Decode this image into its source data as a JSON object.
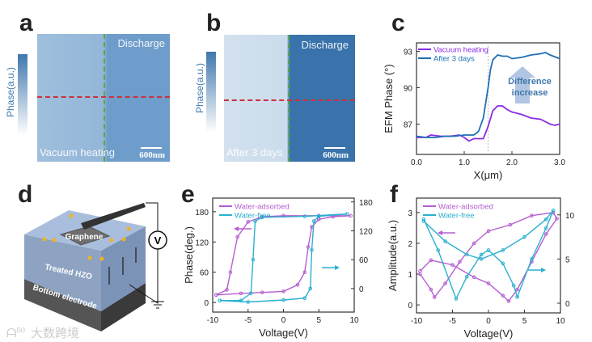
{
  "panels": {
    "a": {
      "label": "a",
      "colorbar_label": "Phase(a.u.)",
      "top_text": "Discharge",
      "bottom_text": "Vacuum heating",
      "scale": "600nm"
    },
    "b": {
      "label": "b",
      "colorbar_label": "Phase(a.u.)",
      "top_text": "Discharge",
      "bottom_text": "After 3 days",
      "scale": "600nm"
    },
    "c": {
      "label": "c"
    },
    "d": {
      "label": "d",
      "graphene": "Graphene",
      "hzo": "Treated HZO",
      "electrode": "Bottom electrode",
      "meter": "V"
    },
    "e": {
      "label": "e"
    },
    "f": {
      "label": "f"
    }
  },
  "watermark": "大数跨境",
  "colors": {
    "purple": "#8a2be2",
    "blue": "#1f6fb5",
    "magenta": "#b55fd0",
    "cyan": "#2bb0d0",
    "afm": "#3f77ad"
  },
  "chart_data": [
    {
      "id": "c",
      "type": "line",
      "xlabel": "X(μm)",
      "ylabel": "EFM Phase (°)",
      "xlim": [
        0,
        3
      ],
      "ylim": [
        84.5,
        93.7
      ],
      "xticks": [
        "0.0",
        "1.0",
        "2.0",
        "3.0"
      ],
      "xtickvals": [
        0,
        1,
        2,
        3
      ],
      "yticks": [
        "87",
        "90",
        "93"
      ],
      "ytickvals": [
        87,
        90,
        93
      ],
      "annotation": [
        "Difference",
        "increase"
      ],
      "vline": 1.5,
      "series": [
        {
          "name": "Vacuum heating",
          "color": "#8a2be2",
          "x": [
            0,
            0.2,
            0.3,
            0.5,
            0.7,
            0.9,
            1.0,
            1.1,
            1.2,
            1.3,
            1.4,
            1.5,
            1.6,
            1.7,
            1.8,
            1.9,
            2.0,
            2.2,
            2.4,
            2.6,
            2.8,
            2.9,
            3.0
          ],
          "y": [
            85.9,
            85.9,
            86.1,
            86.0,
            86.0,
            86.1,
            85.9,
            85.6,
            85.8,
            85.8,
            85.8,
            86.8,
            88.1,
            88.5,
            88.5,
            88.2,
            88.0,
            87.8,
            87.5,
            87.4,
            87.0,
            86.9,
            87.0
          ]
        },
        {
          "name": "After 3 days",
          "color": "#1f6fb5",
          "x": [
            0,
            0.2,
            0.4,
            0.6,
            0.8,
            1.0,
            1.2,
            1.3,
            1.4,
            1.5,
            1.55,
            1.6,
            1.7,
            1.8,
            1.9,
            2.0,
            2.2,
            2.4,
            2.6,
            2.7,
            2.8,
            3.0
          ],
          "y": [
            86.0,
            85.9,
            85.9,
            86.0,
            86.0,
            86.1,
            86.1,
            86.4,
            87.5,
            90.0,
            91.5,
            92.3,
            92.7,
            92.6,
            92.6,
            92.4,
            92.5,
            92.7,
            92.8,
            92.9,
            92.7,
            92.4
          ]
        }
      ]
    },
    {
      "id": "e",
      "type": "line",
      "xlabel": "Voltage(V)",
      "ylabel": "Phase(deg.)",
      "xlim": [
        -10,
        10
      ],
      "ylim": [
        -19,
        207
      ],
      "y2lim": [
        -49,
        188
      ],
      "xticks": [
        "-10",
        "-5",
        "0",
        "5",
        "10"
      ],
      "xtickvals": [
        -10,
        -5,
        0,
        5,
        10
      ],
      "yticks": [
        "0",
        "60",
        "120",
        "180"
      ],
      "ytickvals": [
        0,
        60,
        120,
        180
      ],
      "y2ticks": [
        "0",
        "60",
        "120",
        "180"
      ],
      "y2tickvals": [
        0,
        60,
        120,
        180
      ],
      "series": [
        {
          "name": "Water-adsorbed",
          "color": "#b55fd0",
          "axis": "left",
          "x": [
            -9.5,
            -6,
            -3,
            0,
            2,
            3,
            3.5,
            4,
            5,
            7,
            9.5,
            5,
            0,
            -3,
            -5,
            -6.5,
            -7.5,
            -8,
            -9.5
          ],
          "y": [
            15,
            18,
            20,
            22,
            35,
            60,
            110,
            150,
            165,
            170,
            172,
            172,
            172,
            170,
            160,
            130,
            60,
            25,
            15
          ]
        },
        {
          "name": "Water-free",
          "color": "#2bb0d0",
          "axis": "right",
          "x": [
            -9,
            -5,
            0,
            3,
            3.8,
            4,
            4.3,
            5,
            9,
            3,
            -3,
            -4,
            -4.3,
            -4.6,
            -6,
            -9
          ],
          "y": [
            -25,
            -28,
            -24,
            -20,
            0,
            80,
            140,
            150,
            155,
            150,
            148,
            140,
            60,
            -10,
            -25,
            -25
          ]
        }
      ]
    },
    {
      "id": "f",
      "type": "line",
      "xlabel": "Voltage(V)",
      "ylabel": "Amplitude(a.u.)",
      "xlim": [
        -10,
        10
      ],
      "ylim": [
        -0.26,
        3.47
      ],
      "y2lim": [
        -1.1,
        11.9
      ],
      "xticks": [
        "-10",
        "-5",
        "0",
        "5",
        "10"
      ],
      "xtickvals": [
        -10,
        -5,
        0,
        5,
        10
      ],
      "yticks": [
        "0",
        "1",
        "2",
        "3"
      ],
      "ytickvals": [
        0,
        1,
        2,
        3
      ],
      "y2ticks": [
        "0",
        "5",
        "10"
      ],
      "y2tickvals": [
        0,
        5,
        10
      ],
      "series": [
        {
          "name": "Water-adsorbed",
          "color": "#b55fd0",
          "axis": "left",
          "x": [
            -9.5,
            -8,
            -7.5,
            -6,
            -4,
            -2,
            0,
            3,
            6,
            9,
            9.5,
            8,
            6,
            4,
            2.8,
            2,
            0,
            -2,
            -5,
            -8,
            -9.5
          ],
          "y": [
            1.0,
            0.5,
            0.25,
            0.7,
            1.4,
            2.0,
            2.4,
            2.6,
            2.9,
            3.0,
            2.8,
            2.3,
            1.4,
            0.5,
            0.12,
            0.3,
            0.7,
            0.9,
            1.3,
            1.45,
            1.1
          ]
        },
        {
          "name": "Water-free",
          "color": "#2bb0d0",
          "axis": "right",
          "x": [
            -9,
            -7,
            -4.5,
            -3,
            -1,
            0,
            2,
            3.5,
            4,
            6,
            8,
            9,
            8,
            5,
            2,
            -1,
            -3,
            -6,
            -9
          ],
          "y": [
            9.5,
            6,
            0.5,
            3,
            5.5,
            6,
            4.5,
            2,
            0.7,
            5,
            8.5,
            10.5,
            9.5,
            7.5,
            6,
            5,
            5.5,
            7,
            9.3
          ]
        }
      ]
    }
  ]
}
